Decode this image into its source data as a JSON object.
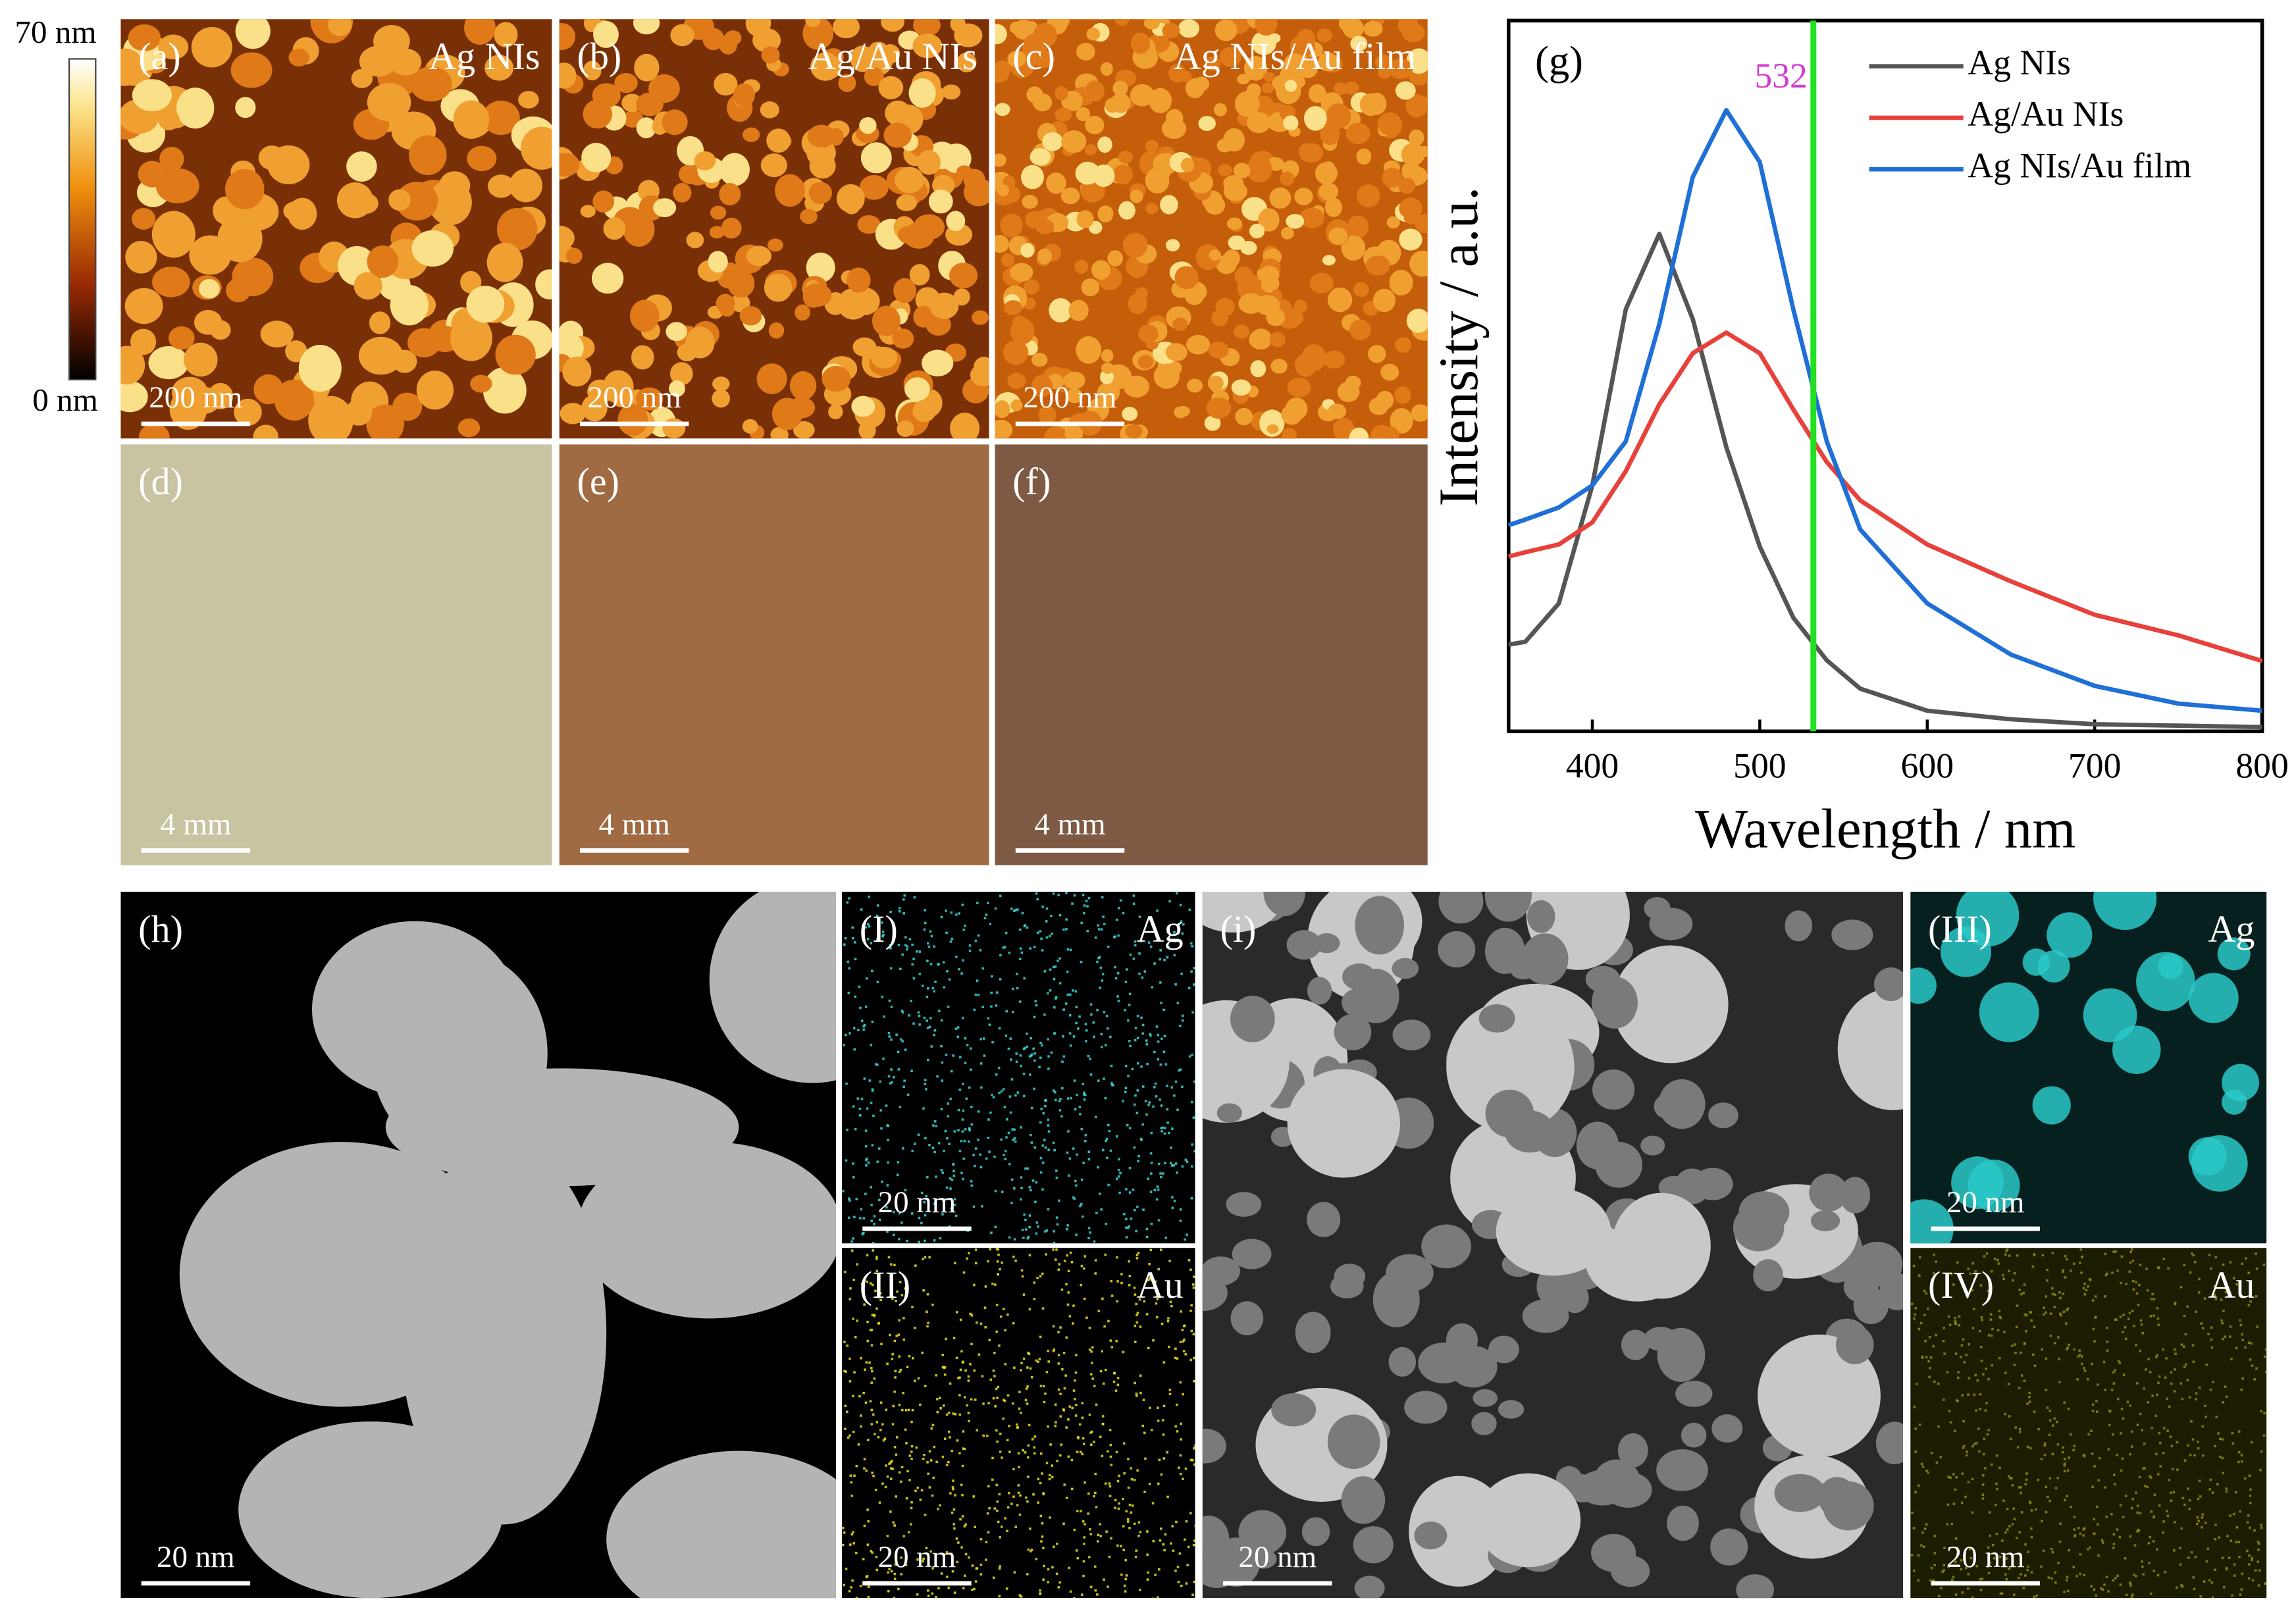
{
  "chart_data": {
    "type": "line",
    "panel_label": "(g)",
    "xlabel": "Wavelength / nm",
    "ylabel": "Intensity / a.u.",
    "x": [
      350,
      360,
      380,
      400,
      420,
      440,
      460,
      480,
      500,
      520,
      540,
      560,
      600,
      650,
      700,
      750,
      800
    ],
    "series": [
      {
        "name": "Ag NIs",
        "color": "#555555",
        "values": [
          12.2,
          12.6,
          18,
          34.6,
          59.4,
          70,
          58,
          40,
          26,
          16,
          10,
          6,
          2.9,
          1.7,
          1,
          0.8,
          0.6
        ]
      },
      {
        "name": "Ag/Au NIs",
        "color": "#e8403a",
        "values": [
          24.6,
          25.2,
          26.3,
          29.4,
          36.6,
          46,
          53.2,
          56.1,
          53.2,
          45.3,
          37.9,
          32.5,
          26.3,
          21.1,
          16.4,
          13.5,
          9.9
        ]
      },
      {
        "name": "Ag NIs/Au film",
        "color": "#1f6fd6",
        "values": [
          29,
          29.8,
          31.5,
          34.6,
          40.8,
          57.3,
          78,
          87.4,
          80.1,
          59.4,
          40.8,
          28.4,
          18,
          10.8,
          6.4,
          3.9,
          2.9
        ]
      }
    ],
    "vlines": [
      {
        "x": 532,
        "color": "#22e022",
        "label_color": "#d23cd2"
      }
    ],
    "xlim": [
      350,
      800
    ],
    "xticks": [
      400,
      500,
      600,
      700,
      800
    ],
    "ylim": [
      0,
      100
    ],
    "legend": "top-right"
  },
  "colorbar": {
    "max_label": "70 nm",
    "min_label": "0 nm"
  },
  "panels": [
    {
      "label": "(a)",
      "title": "Ag NIs",
      "scale_bar": "200 nm"
    },
    {
      "label": "(b)",
      "title": "Ag/Au NIs",
      "scale_bar": "200 nm"
    },
    {
      "label": "(c)",
      "title": "Ag NIs/Au film",
      "scale_bar": "200 nm"
    },
    {
      "label": "(d)",
      "scale_bar": "4 mm"
    },
    {
      "label": "(e)",
      "scale_bar": "4 mm"
    },
    {
      "label": "(f)",
      "scale_bar": "4 mm"
    },
    {
      "label": "(h)",
      "scale_bar": "20 nm"
    },
    {
      "label": "(I)",
      "title": "Ag",
      "scale_bar": "20 nm"
    },
    {
      "label": "(II)",
      "title": "Au",
      "scale_bar": "20 nm"
    },
    {
      "label": "(i)",
      "scale_bar": "20 nm"
    },
    {
      "label": "(III)",
      "title": "Ag",
      "scale_bar": "20 nm"
    },
    {
      "label": "(IV)",
      "title": "Au",
      "scale_bar": "20 nm"
    }
  ]
}
